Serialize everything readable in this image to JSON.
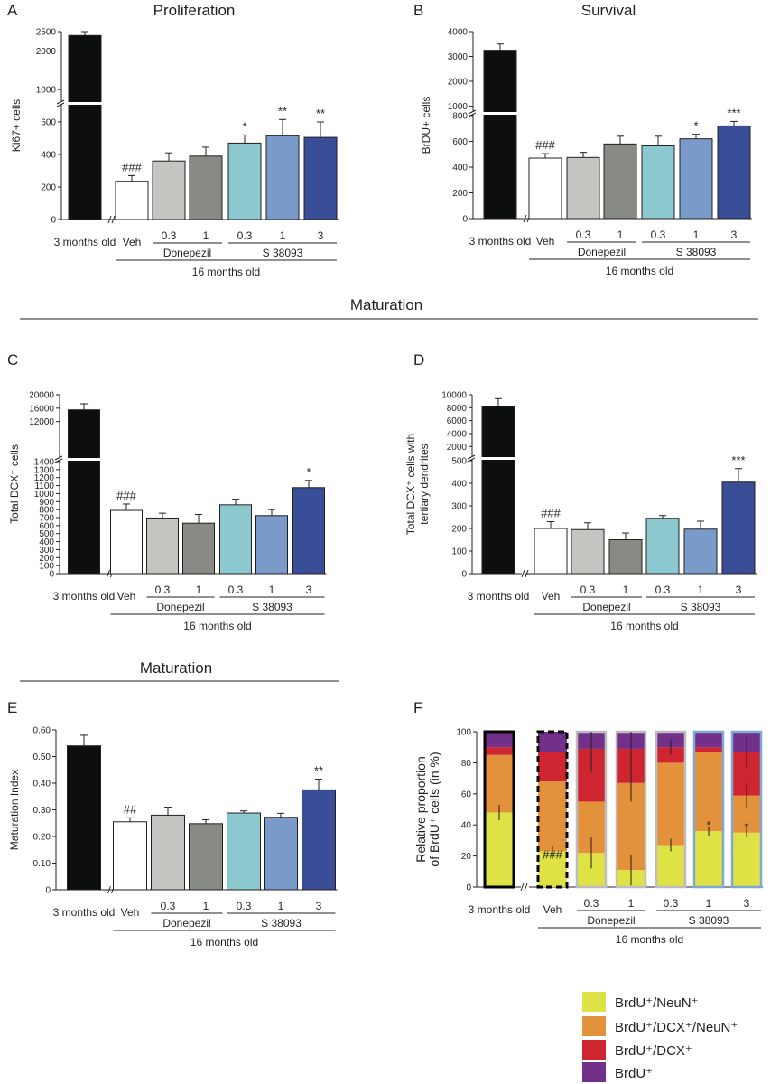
{
  "sections": {
    "maturation_middle": "Maturation",
    "maturation_e": "Maturation"
  },
  "common": {
    "ref_group": "3 months old",
    "treat_categories": [
      "Veh",
      "0.3",
      "1",
      "0.3",
      "1",
      "3"
    ],
    "drug1": "Donepezil",
    "drug2": "S 38093",
    "age_group": "16 months old"
  },
  "colors": {
    "bars": [
      "#0d0f0e",
      "#ffffff",
      "#c4c5c0",
      "#888a86",
      "#8cc9cf",
      "#7a9bc9",
      "#3a4e98"
    ],
    "stack": [
      "#dfe245",
      "#e3913a",
      "#cf2531",
      "#73308a"
    ],
    "stack_borders": [
      "#000000",
      "#000000",
      "#bdbdbf",
      "#bdbdbf",
      "#bdbdbf",
      "#7fa8d6",
      "#7fa8d6"
    ]
  },
  "chart_data": [
    {
      "panel": "A",
      "type": "bar",
      "title": "Proliferation",
      "ylabel": "Ki67+ cells",
      "categories": [
        "3 months old",
        "Veh",
        "Donepezil 0.3",
        "Donepezil 1",
        "S 38093 0.3",
        "S 38093 1",
        "S 38093 3"
      ],
      "values": [
        2400,
        235,
        360,
        390,
        470,
        515,
        505
      ],
      "errors": [
        100,
        35,
        50,
        55,
        50,
        100,
        95
      ],
      "significance": [
        "",
        "###",
        "",
        "",
        "*",
        "**",
        "**"
      ],
      "ylim_lower": [
        0,
        700
      ],
      "ylim_upper": [
        700,
        2500
      ],
      "yticks_lower": [
        0,
        200,
        400,
        600
      ],
      "yticks_upper": [
        1000,
        2000,
        2500
      ]
    },
    {
      "panel": "B",
      "type": "bar",
      "title": "Survival",
      "ylabel": "BrDU+ cells",
      "categories": [
        "3 months old",
        "Veh",
        "Donepezil 0.3",
        "Donepezil 1",
        "S 38093 0.3",
        "S 38093 1",
        "S 38093 3"
      ],
      "values": [
        3250,
        470,
        475,
        580,
        565,
        620,
        720
      ],
      "errors": [
        250,
        35,
        40,
        60,
        75,
        35,
        35
      ],
      "significance": [
        "",
        "###",
        "",
        "",
        "",
        "*",
        "***"
      ],
      "ylim_lower": [
        0,
        800
      ],
      "ylim_upper": [
        800,
        4000
      ],
      "yticks_lower": [
        0,
        200,
        400,
        600,
        800
      ],
      "yticks_upper": [
        1000,
        2000,
        3000,
        4000
      ]
    },
    {
      "panel": "C",
      "type": "bar",
      "title": "",
      "ylabel": "Total DCX⁺ cells",
      "categories": [
        "3 months old",
        "Veh",
        "Donepezil 0.3",
        "Donepezil 1",
        "S 38093 0.3",
        "S 38093 1",
        "S 38093 3"
      ],
      "values": [
        15500,
        790,
        695,
        630,
        860,
        725,
        1075
      ],
      "errors": [
        1800,
        80,
        60,
        110,
        70,
        75,
        90
      ],
      "significance": [
        "",
        "###",
        "",
        "",
        "",
        "",
        "*"
      ],
      "ylim_lower": [
        0,
        1400
      ],
      "ylim_upper": [
        1400,
        20000
      ],
      "yticks_lower": [
        0,
        100,
        200,
        300,
        400,
        500,
        600,
        700,
        800,
        900,
        1000,
        1100,
        1200,
        1300,
        1400
      ],
      "yticks_upper": [
        12000,
        16000,
        20000
      ]
    },
    {
      "panel": "D",
      "type": "bar",
      "title": "",
      "ylabel": "Total DCX⁺ cells with tertiary dendrites",
      "categories": [
        "3 months old",
        "Veh",
        "Donepezil 0.3",
        "Donepezil 1",
        "S 38093 0.3",
        "S 38093 1",
        "S 38093 3"
      ],
      "values": [
        8200,
        200,
        195,
        150,
        245,
        197,
        405
      ],
      "errors": [
        1200,
        30,
        30,
        30,
        12,
        35,
        60
      ],
      "significance": [
        "",
        "###",
        "",
        "",
        "",
        "",
        "***"
      ],
      "ylim_lower": [
        0,
        500
      ],
      "ylim_upper": [
        500,
        10000
      ],
      "yticks_lower": [
        0,
        100,
        200,
        300,
        400,
        500
      ],
      "yticks_upper": [
        2000,
        4000,
        6000,
        8000,
        10000
      ]
    },
    {
      "panel": "E",
      "type": "bar",
      "title": "",
      "ylabel": "Maturation Index",
      "categories": [
        "3 months old",
        "Veh",
        "Donepezil 0.3",
        "Donepezil 1",
        "S 38093 0.3",
        "S 38093 1",
        "S 38093 3"
      ],
      "values": [
        0.54,
        0.255,
        0.28,
        0.248,
        0.288,
        0.272,
        0.375
      ],
      "errors": [
        0.04,
        0.015,
        0.03,
        0.015,
        0.008,
        0.015,
        0.04
      ],
      "significance": [
        "",
        "##",
        "",
        "",
        "",
        "",
        "**"
      ],
      "ylim": [
        0,
        0.6
      ],
      "yticks": [
        0,
        0.1,
        0.2,
        0.3,
        0.4,
        0.5,
        0.6
      ],
      "ytick_labels": [
        "0",
        "0.10",
        "0.20",
        "0.30",
        "0.40",
        "0.50",
        "0.60"
      ]
    },
    {
      "panel": "F",
      "type": "bar",
      "stacked": true,
      "title": "",
      "ylabel": "Relative proportion of BrdU⁺ cells (in %)",
      "categories": [
        "3 months old",
        "Veh",
        "Donepezil 0.3",
        "Donepezil 1",
        "S 38093 0.3",
        "S 38093 1",
        "S 38093 3"
      ],
      "ylim": [
        0,
        100
      ],
      "yticks": [
        0,
        20,
        40,
        60,
        80,
        100
      ],
      "series": [
        {
          "name": "BrdU⁺/NeuN⁺",
          "values": [
            48,
            23,
            22,
            11,
            27,
            36,
            35
          ],
          "errors": [
            5,
            3,
            10,
            10,
            4,
            3,
            3
          ]
        },
        {
          "name": "BrdU⁺/DCX⁺/NeuN⁺",
          "values": [
            37,
            45,
            33,
            56,
            53,
            51,
            24
          ],
          "errors": [
            0,
            0,
            0,
            12,
            0,
            0,
            8
          ]
        },
        {
          "name": "BrdU⁺/DCX⁺",
          "values": [
            5,
            19,
            34,
            22,
            10,
            3,
            28
          ],
          "errors": [
            0,
            0,
            15,
            15,
            5,
            0,
            10
          ]
        },
        {
          "name": "BrdU⁺",
          "values": [
            10,
            13,
            11,
            11,
            10,
            10,
            13
          ],
          "errors": [
            0,
            0,
            0,
            0,
            0,
            0,
            0
          ]
        }
      ],
      "significance": [
        "",
        "###",
        "",
        "",
        "",
        "*",
        "*"
      ]
    }
  ]
}
